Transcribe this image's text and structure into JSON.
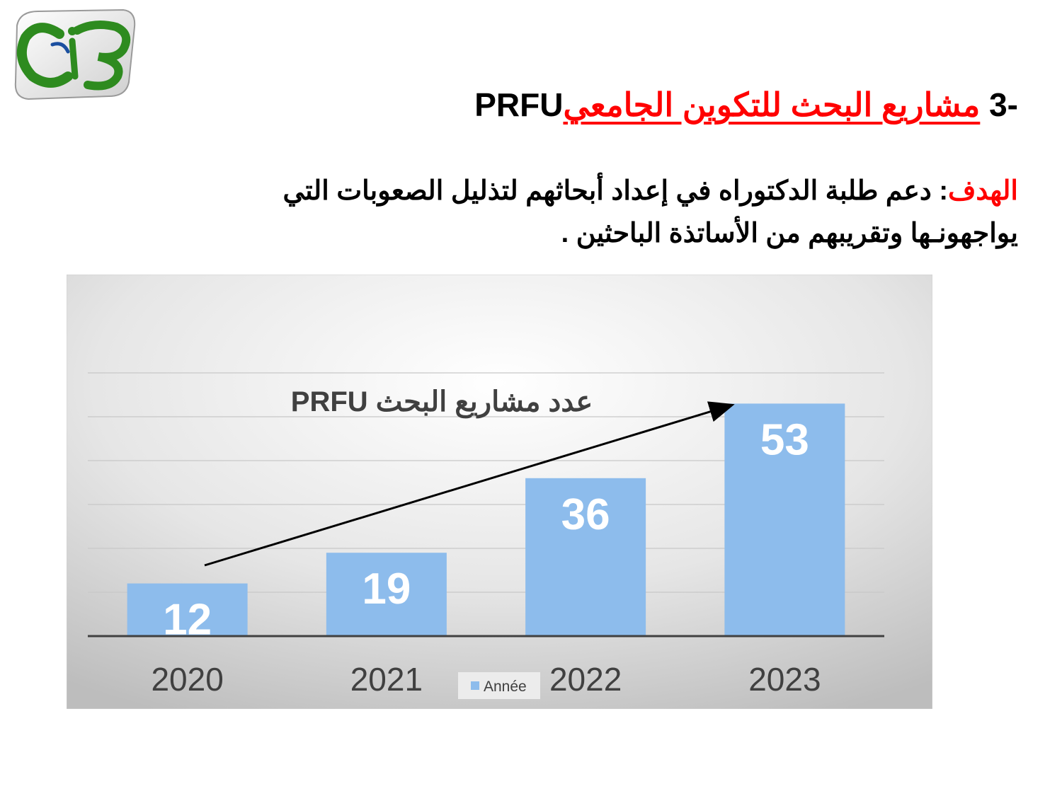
{
  "slide": {
    "title_number": "3-",
    "title_arabic": "مشاريع البحث للتكوين الجامعي",
    "title_acronym": "PRFU",
    "goal_label": "الهدف",
    "goal_colon": ":",
    "goal_text": " دعم طلبة الدكتوراه في إعداد أبحاثهم لتذليل الصعوبات التي يواجهونـها وتقريبهم من الأساتذة الباحثين .",
    "logo_icon": "university-logo-icon"
  },
  "colors": {
    "title_red": "#ff0000",
    "bar": "#8dbcec",
    "bar_label": "#ffffff",
    "tick_label": "#404040"
  },
  "chart_data": {
    "type": "bar",
    "title_arabic": "عدد مشاريع البحث",
    "title_acronym": "PRFU",
    "categories": [
      "2020",
      "2021",
      "2022",
      "2023"
    ],
    "series": [
      {
        "name": "Année",
        "values": [
          12,
          19,
          36,
          53
        ]
      }
    ],
    "ylim": [
      0,
      60
    ],
    "grid": true,
    "legend": "bottom",
    "annotation": "trend-arrow"
  }
}
